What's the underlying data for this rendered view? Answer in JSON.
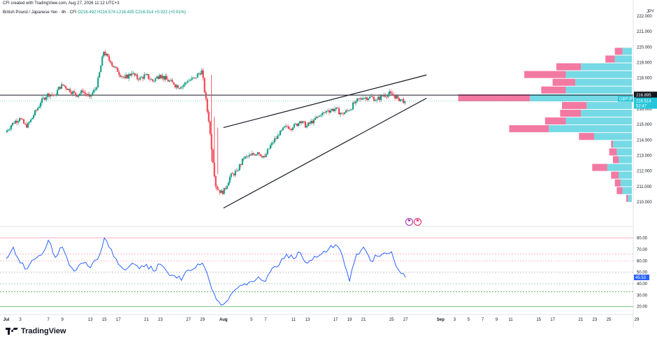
{
  "header": {
    "created_by": "CFI created with TradingView.com, Aug 27, 2026 11:12 UTC+3",
    "symbol": "British Pound / Japanese Yen · 4h · CFI",
    "ohlc": "O216.492 H216.574 L216.435 C216.514 +0.022 (+0.01%)"
  },
  "currency_label": "JPY",
  "brand": "TradingView",
  "events": [
    "flag-icon",
    "flag-icon"
  ],
  "chart_data": [
    {
      "type": "candlestick",
      "title": "British Pound / Japanese Yen · 4h · CFI",
      "ylim": [
        209.5,
        222.5
      ],
      "y_ticks": [
        210.0,
        211.0,
        212.0,
        213.0,
        214.0,
        215.0,
        216.0,
        217.0,
        218.0,
        219.0,
        220.0,
        221.0,
        222.0
      ],
      "x_ticks": [
        "Jul",
        "3",
        "7",
        "9",
        "13",
        "15",
        "17",
        "21",
        "23",
        "27",
        "29",
        "Aug",
        "5",
        "7",
        "11",
        "13",
        "17",
        "19",
        "21",
        "25",
        "27",
        "Sep",
        "3",
        "5",
        "7",
        "9",
        "11",
        "15",
        "17",
        "21",
        "23",
        "25",
        "29"
      ],
      "close_path": [
        [
          "Jul 1",
          214.5
        ],
        [
          "Jul 2",
          215.1
        ],
        [
          "Jul 3",
          215.4
        ],
        [
          "Jul 4",
          214.8
        ],
        [
          "Jul 5",
          215.6
        ],
        [
          "Jul 6",
          216.4
        ],
        [
          "Jul 7",
          217.0
        ],
        [
          "Jul 8",
          216.9
        ],
        [
          "Jul 9",
          217.6
        ],
        [
          "Jul 10",
          217.3
        ],
        [
          "Jul 11",
          216.9
        ],
        [
          "Jul 12",
          217.1
        ],
        [
          "Jul 13",
          216.8
        ],
        [
          "Jul 14",
          217.4
        ],
        [
          "Jul 15",
          219.7
        ],
        [
          "Jul 16",
          219.0
        ],
        [
          "Jul 17",
          218.4
        ],
        [
          "Jul 18",
          218.0
        ],
        [
          "Jul 19",
          218.3
        ],
        [
          "Jul 20",
          217.9
        ],
        [
          "Jul 21",
          218.2
        ],
        [
          "Jul 22",
          217.8
        ],
        [
          "Jul 23",
          218.2
        ],
        [
          "Jul 24",
          217.9
        ],
        [
          "Jul 25",
          217.6
        ],
        [
          "Jul 26",
          217.4
        ],
        [
          "Jul 27",
          217.8
        ],
        [
          "Jul 28",
          218.0
        ],
        [
          "Jul 29",
          218.5
        ],
        [
          "Jul 30",
          215.2
        ],
        [
          "Jul 31",
          211.0
        ],
        [
          "Aug 1",
          210.5
        ],
        [
          "Aug 2",
          211.6
        ],
        [
          "Aug 3",
          212.0
        ],
        [
          "Aug 4",
          212.8
        ],
        [
          "Aug 5",
          213.0
        ],
        [
          "Aug 6",
          213.2
        ],
        [
          "Aug 7",
          212.9
        ],
        [
          "Aug 8",
          213.8
        ],
        [
          "Aug 9",
          214.3
        ],
        [
          "Aug 10",
          214.9
        ],
        [
          "Aug 11",
          214.8
        ],
        [
          "Aug 12",
          215.2
        ],
        [
          "Aug 13",
          214.9
        ],
        [
          "Aug 14",
          215.3
        ],
        [
          "Aug 15",
          215.6
        ],
        [
          "Aug 16",
          215.9
        ],
        [
          "Aug 17",
          216.0
        ],
        [
          "Aug 18",
          215.7
        ],
        [
          "Aug 19",
          215.9
        ],
        [
          "Aug 20",
          216.5
        ],
        [
          "Aug 21",
          216.7
        ],
        [
          "Aug 22",
          216.8
        ],
        [
          "Aug 23",
          216.6
        ],
        [
          "Aug 24",
          216.9
        ],
        [
          "Aug 25",
          217.0
        ],
        [
          "Aug 26",
          216.7
        ],
        [
          "Aug 27",
          216.5
        ]
      ],
      "horizontal_level": 216.895,
      "trendlines": [
        {
          "name": "upper",
          "from": [
            "Aug 1",
            214.8
          ],
          "to": [
            "Aug 30",
            218.2
          ]
        },
        {
          "name": "lower",
          "from": [
            "Aug 1",
            209.6
          ],
          "to": [
            "Aug 30",
            216.7
          ]
        }
      ],
      "price_labels": [
        {
          "text": "216.895",
          "value": 216.895,
          "color": "#131722"
        },
        {
          "text": "GBPJPY",
          "value": 216.514,
          "color": "#26c6da"
        },
        {
          "text": "216.514",
          "value": 216.514,
          "color": "#26c6da"
        },
        {
          "text": "52:47",
          "value": 216.514,
          "color": "#26c6da"
        }
      ],
      "volume_profile": [
        {
          "price": 219.5,
          "up": 0.05,
          "down": 0.04
        },
        {
          "price": 219.0,
          "up": 0.09,
          "down": 0.05
        },
        {
          "price": 218.5,
          "up": 0.27,
          "down": 0.13
        },
        {
          "price": 218.0,
          "up": 0.35,
          "down": 0.22
        },
        {
          "price": 217.5,
          "up": 0.3,
          "down": 0.12
        },
        {
          "price": 217.0,
          "up": 0.35,
          "down": 0.13
        },
        {
          "price": 216.5,
          "up": 0.54,
          "down": 0.38
        },
        {
          "price": 216.0,
          "up": 0.24,
          "down": 0.13
        },
        {
          "price": 215.5,
          "up": 0.27,
          "down": 0.11
        },
        {
          "price": 215.0,
          "up": 0.35,
          "down": 0.11
        },
        {
          "price": 214.5,
          "up": 0.44,
          "down": 0.21
        },
        {
          "price": 214.0,
          "up": 0.2,
          "down": 0.08
        },
        {
          "price": 213.5,
          "up": 0.1,
          "down": 0.01
        },
        {
          "price": 213.0,
          "up": 0.08,
          "down": 0.04
        },
        {
          "price": 212.5,
          "up": 0.07,
          "down": 0.03
        },
        {
          "price": 212.0,
          "up": 0.13,
          "down": 0.08
        },
        {
          "price": 211.5,
          "up": 0.07,
          "down": 0.04
        },
        {
          "price": 211.0,
          "up": 0.06,
          "down": 0.03
        },
        {
          "price": 210.5,
          "up": 0.05,
          "down": 0.03
        },
        {
          "price": 210.0,
          "up": 0.02,
          "down": 0.01
        }
      ],
      "colors": {
        "up": "#089981",
        "down": "#f23645",
        "profile_up": "#5dd3e0",
        "profile_down": "#f06292"
      }
    },
    {
      "type": "line",
      "name": "RSI",
      "ylim": [
        18,
        84
      ],
      "y_ticks": [
        20.0,
        30.0,
        40.0,
        50.0,
        60.0,
        70.0,
        80.0
      ],
      "levels": [
        80,
        66,
        60,
        50,
        40,
        33,
        20
      ],
      "last_value_label": "45.53",
      "values": [
        [
          "Jul 1",
          62
        ],
        [
          "Jul 2",
          72
        ],
        [
          "Jul 3",
          58
        ],
        [
          "Jul 4",
          53
        ],
        [
          "Jul 5",
          61
        ],
        [
          "Jul 6",
          65
        ],
        [
          "Jul 7",
          78
        ],
        [
          "Jul 8",
          63
        ],
        [
          "Jul 9",
          72
        ],
        [
          "Jul 10",
          56
        ],
        [
          "Jul 11",
          52
        ],
        [
          "Jul 12",
          58
        ],
        [
          "Jul 13",
          54
        ],
        [
          "Jul 14",
          61
        ],
        [
          "Jul 15",
          80
        ],
        [
          "Jul 16",
          70
        ],
        [
          "Jul 17",
          57
        ],
        [
          "Jul 18",
          52
        ],
        [
          "Jul 19",
          58
        ],
        [
          "Jul 20",
          53
        ],
        [
          "Jul 21",
          57
        ],
        [
          "Jul 22",
          51
        ],
        [
          "Jul 23",
          57
        ],
        [
          "Jul 24",
          50
        ],
        [
          "Jul 25",
          47
        ],
        [
          "Jul 26",
          43
        ],
        [
          "Jul 27",
          52
        ],
        [
          "Jul 28",
          54
        ],
        [
          "Jul 29",
          58
        ],
        [
          "Jul 30",
          42
        ],
        [
          "Jul 31",
          26
        ],
        [
          "Aug 1",
          22
        ],
        [
          "Aug 2",
          30
        ],
        [
          "Aug 3",
          36
        ],
        [
          "Aug 4",
          40
        ],
        [
          "Aug 5",
          42
        ],
        [
          "Aug 6",
          46
        ],
        [
          "Aug 7",
          42
        ],
        [
          "Aug 8",
          54
        ],
        [
          "Aug 9",
          57
        ],
        [
          "Aug 10",
          66
        ],
        [
          "Aug 11",
          62
        ],
        [
          "Aug 12",
          67
        ],
        [
          "Aug 13",
          58
        ],
        [
          "Aug 14",
          64
        ],
        [
          "Aug 15",
          66
        ],
        [
          "Aug 16",
          70
        ],
        [
          "Aug 17",
          74
        ],
        [
          "Aug 18",
          64
        ],
        [
          "Aug 19",
          42
        ],
        [
          "Aug 20",
          66
        ],
        [
          "Aug 21",
          72
        ],
        [
          "Aug 22",
          60
        ],
        [
          "Aug 23",
          64
        ],
        [
          "Aug 24",
          67
        ],
        [
          "Aug 25",
          68
        ],
        [
          "Aug 26",
          52
        ],
        [
          "Aug 27",
          45.5
        ]
      ]
    }
  ]
}
